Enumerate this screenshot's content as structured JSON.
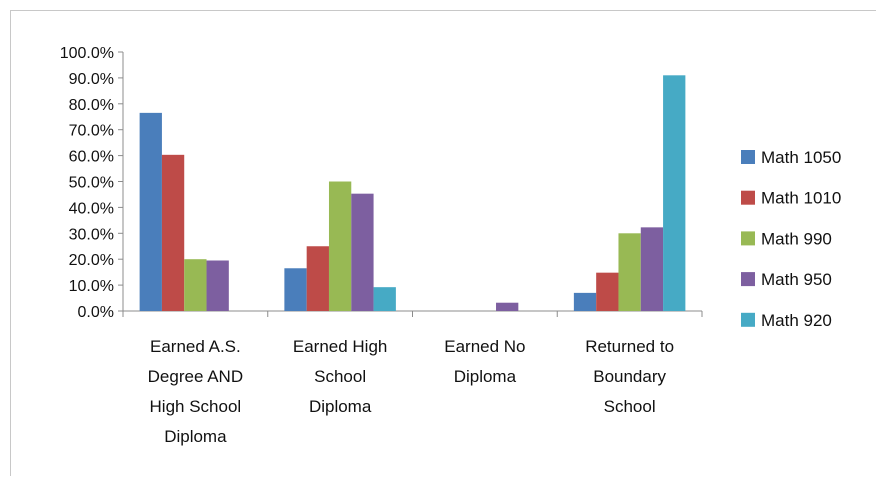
{
  "chart_data": {
    "type": "bar",
    "title": "",
    "xlabel": "",
    "ylabel": "",
    "ylim": [
      0,
      100
    ],
    "y_ticks": [
      "0.0%",
      "10.0%",
      "20.0%",
      "30.0%",
      "40.0%",
      "50.0%",
      "60.0%",
      "70.0%",
      "80.0%",
      "90.0%",
      "100.0%"
    ],
    "categories": [
      [
        "Earned A.S.",
        "Degree AND",
        "High School",
        "Diploma"
      ],
      [
        "Earned High",
        "School",
        "Diploma"
      ],
      [
        "Earned No",
        "Diploma"
      ],
      [
        "Returned to",
        "Boundary",
        "School"
      ]
    ],
    "series": [
      {
        "name": "Math 1050",
        "color": "#4a7ebb",
        "values": [
          76.5,
          16.5,
          0,
          7.0
        ]
      },
      {
        "name": "Math 1010",
        "color": "#be4b48",
        "values": [
          60.3,
          25.0,
          0,
          14.8
        ]
      },
      {
        "name": "Math 990",
        "color": "#98b954",
        "values": [
          20.0,
          50.0,
          0,
          30.0
        ]
      },
      {
        "name": "Math 950",
        "color": "#7d5fa0",
        "values": [
          19.5,
          45.3,
          3.2,
          32.3
        ]
      },
      {
        "name": "Math 920",
        "color": "#46aac5",
        "values": [
          0,
          9.2,
          0,
          91.0
        ]
      }
    ],
    "grid": false,
    "legend": "right"
  }
}
